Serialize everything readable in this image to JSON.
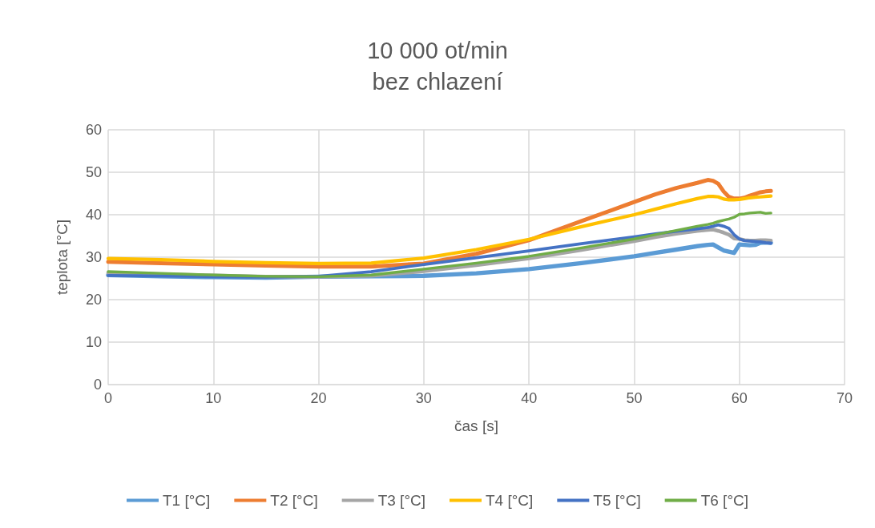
{
  "chart_data": {
    "type": "line",
    "title": "10 000 ot/min",
    "subtitle": "bez chlazení",
    "xlabel": "čas [s]",
    "ylabel": "teplota [°C]",
    "x": [
      0,
      5,
      10,
      15,
      20,
      25,
      30,
      35,
      40,
      45,
      50,
      52,
      54,
      56,
      57,
      57.5,
      58,
      58.5,
      59,
      59.5,
      60,
      60.5,
      61,
      61.5,
      62,
      62.5,
      63
    ],
    "series": [
      {
        "name": "T1 [°C]",
        "color": "#5b9bd5",
        "values": [
          25.8,
          25.5,
          25.3,
          25.2,
          25.4,
          25.5,
          25.6,
          26.2,
          27.2,
          28.6,
          30.2,
          31,
          31.8,
          32.6,
          32.9,
          33,
          32.3,
          31.6,
          31.3,
          31,
          33,
          32.9,
          32.8,
          32.9,
          33.4,
          33.5,
          33.4
        ]
      },
      {
        "name": "T2 [°C]",
        "color": "#ed7d31",
        "values": [
          28.9,
          28.6,
          28.3,
          28,
          27.8,
          27.8,
          28.5,
          30.8,
          34,
          38.5,
          43,
          44.8,
          46.3,
          47.5,
          48.2,
          48,
          47.3,
          45.5,
          44.2,
          43.8,
          43.8,
          44,
          44.5,
          44.9,
          45.3,
          45.5,
          45.6
        ]
      },
      {
        "name": "T3 [°C]",
        "color": "#a5a5a5",
        "values": [
          26.3,
          26,
          25.7,
          25.4,
          25.4,
          25.6,
          26.7,
          28.1,
          29.7,
          31.7,
          33.8,
          34.7,
          35.5,
          36.2,
          36.4,
          36.5,
          36.2,
          35.8,
          35.3,
          34.4,
          34.3,
          34,
          33.9,
          33.9,
          34,
          34,
          33.9
        ]
      },
      {
        "name": "T4 [°C]",
        "color": "#ffc000",
        "values": [
          29.7,
          29.4,
          29,
          28.7,
          28.5,
          28.6,
          29.8,
          31.8,
          34.2,
          37.2,
          40,
          41.3,
          42.6,
          43.8,
          44.3,
          44.3,
          44.2,
          43.7,
          43.5,
          43.5,
          43.6,
          43.8,
          44,
          44.1,
          44.2,
          44.3,
          44.4
        ]
      },
      {
        "name": "T5 [°C]",
        "color": "#4472c4",
        "values": [
          25.7,
          25.6,
          25.4,
          25.3,
          25.5,
          26.6,
          28.3,
          29.9,
          31.5,
          33.2,
          34.8,
          35.5,
          36.1,
          36.7,
          37,
          37.3,
          37.6,
          37.3,
          36.8,
          35.3,
          34.3,
          33.9,
          33.8,
          33.7,
          33.6,
          33.4,
          33.3
        ]
      },
      {
        "name": "T6 [°C]",
        "color": "#70ad47",
        "values": [
          26.6,
          26.2,
          25.8,
          25.5,
          25.4,
          25.8,
          27.2,
          28.6,
          30.2,
          32.2,
          34.3,
          35.3,
          36.3,
          37.3,
          37.7,
          38,
          38.4,
          38.7,
          39,
          39.4,
          40.1,
          40.2,
          40.4,
          40.5,
          40.6,
          40.3,
          40.4
        ]
      }
    ],
    "xlim": [
      0,
      70
    ],
    "xticks": [
      0,
      10,
      20,
      30,
      40,
      50,
      60,
      70
    ],
    "ylim": [
      0,
      60
    ],
    "yticks": [
      0,
      10,
      20,
      30,
      40,
      50,
      60
    ],
    "grid": true,
    "legend": "bottom",
    "marker": "none",
    "line_style": "solid"
  }
}
